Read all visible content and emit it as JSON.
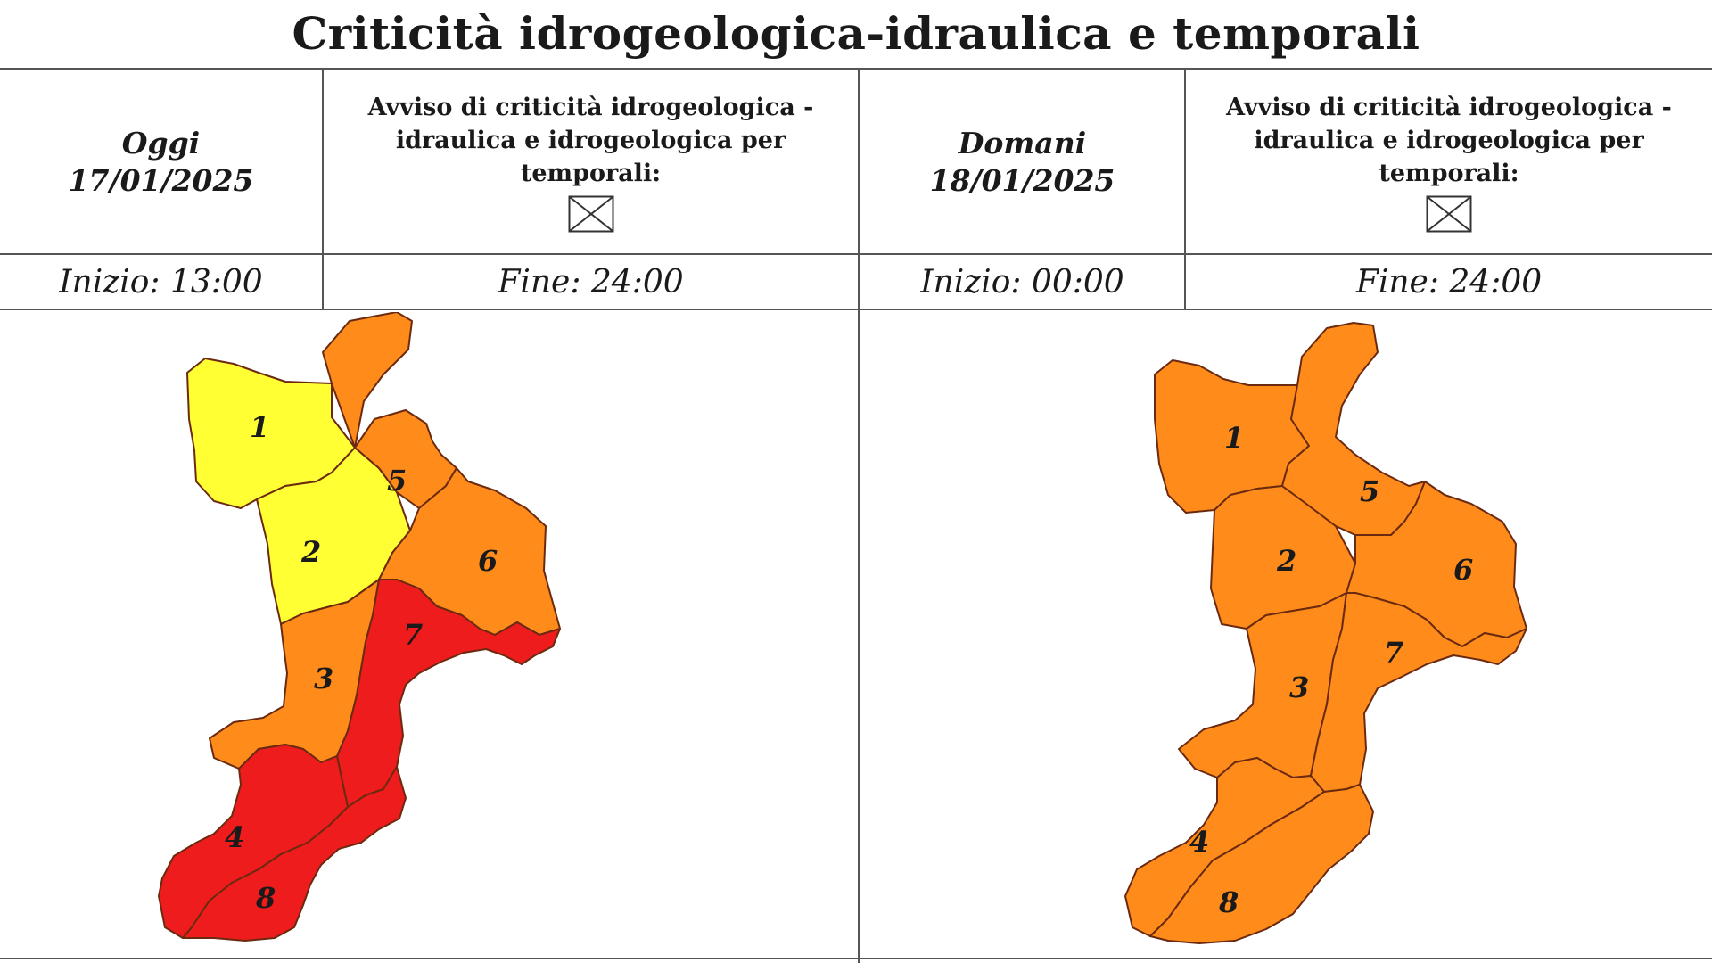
{
  "title": "Criticità idrogeologica-idraulica e temporali",
  "today": {
    "label": "Oggi",
    "date": "17/01/2025",
    "warning_text": "Avviso di criticità idrogeologica - idraulica e idrogeologica per temporali:",
    "start": "Inizio: 13:00",
    "end": "Fine: 24:00",
    "zones": {
      "1": {
        "label": "1",
        "color": "#ffff33"
      },
      "2": {
        "label": "2",
        "color": "#ffff33"
      },
      "3": {
        "label": "3",
        "color": "#ff8c1a"
      },
      "4": {
        "label": "4",
        "color": "#ee1c1c"
      },
      "5": {
        "label": "5",
        "color": "#ff8c1a"
      },
      "6": {
        "label": "6",
        "color": "#ff8c1a"
      },
      "7": {
        "label": "7",
        "color": "#ee1c1c"
      },
      "8": {
        "label": "8",
        "color": "#ee1c1c"
      }
    }
  },
  "tomorrow": {
    "label": "Domani",
    "date": "18/01/2025",
    "warning_text": "Avviso di criticità idrogeologica - idraulica e idrogeologica per temporali:",
    "start": "Inizio: 00:00",
    "end": "Fine: 24:00",
    "zones": {
      "1": {
        "label": "1",
        "color": "#ff8c1a"
      },
      "2": {
        "label": "2",
        "color": "#ff8c1a"
      },
      "3": {
        "label": "3",
        "color": "#ff8c1a"
      },
      "4": {
        "label": "4",
        "color": "#ff8c1a"
      },
      "5": {
        "label": "5",
        "color": "#ff8c1a"
      },
      "6": {
        "label": "6",
        "color": "#ff8c1a"
      },
      "7": {
        "label": "7",
        "color": "#ff8c1a"
      },
      "8": {
        "label": "8",
        "color": "#ff8c1a"
      }
    }
  },
  "colors": {
    "yellow": "#ffff33",
    "orange": "#ff8c1a",
    "red": "#ee1c1c",
    "border": "#6b2a10"
  }
}
